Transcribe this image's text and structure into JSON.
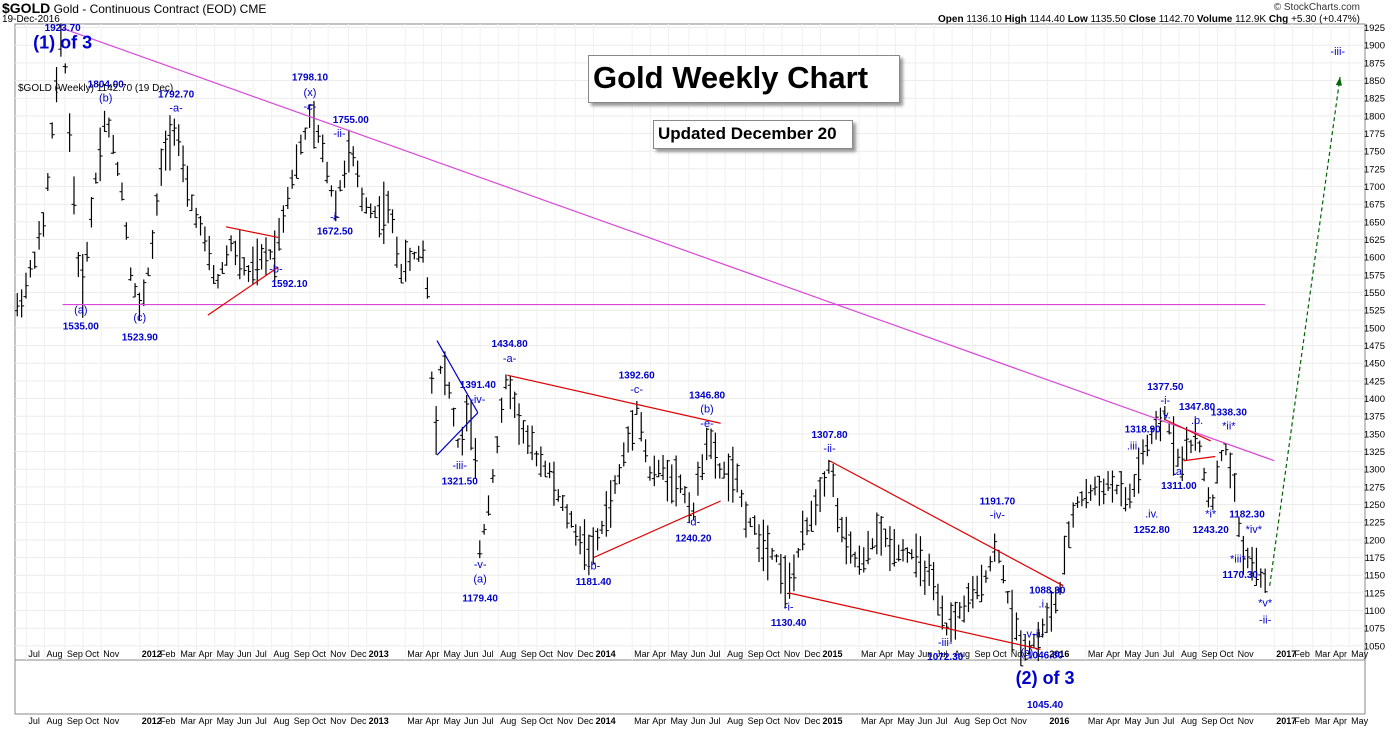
{
  "header": {
    "symbol": "$GOLD",
    "description": "Gold - Continuous Contract (EOD)",
    "exchange": "CME",
    "date": "19-Dec-2016",
    "copyright": "© StockCharts.com",
    "open_label": "Open",
    "open": "1136.10",
    "high_label": "High",
    "high": "1144.40",
    "low_label": "Low",
    "low": "1135.50",
    "close_label": "Close",
    "close": "1142.70",
    "volume_label": "Volume",
    "volume": "112.9K",
    "chg_label": "Chg",
    "chg": "+5.30 (+0.47%)",
    "legend": "$GOLD (Weekly) 1142.70 (19 Dec)"
  },
  "title_box": "Gold Weekly Chart",
  "updated_box": "Updated December 20",
  "colors": {
    "wave": "#0000cc",
    "channel": "#e00000",
    "trend": "#d946d9",
    "projection": "#006400"
  },
  "chart_data": {
    "type": "ohlc",
    "title": "Gold Weekly Chart",
    "ylim": [
      1030,
      1930
    ],
    "y_ticks": [
      1050,
      1075,
      1100,
      1125,
      1150,
      1175,
      1200,
      1225,
      1250,
      1275,
      1300,
      1325,
      1350,
      1375,
      1400,
      1425,
      1450,
      1475,
      1500,
      1525,
      1550,
      1575,
      1600,
      1625,
      1650,
      1675,
      1700,
      1725,
      1750,
      1775,
      1800,
      1825,
      1850,
      1875,
      1900,
      1925
    ],
    "x_labels": [
      {
        "t": "Jul",
        "x": 2011.5
      },
      {
        "t": "Aug",
        "x": 2011.58
      },
      {
        "t": "Sep",
        "x": 2011.67
      },
      {
        "t": "Oct",
        "x": 2011.75
      },
      {
        "t": "Nov",
        "x": 2011.83
      },
      {
        "t": "2012",
        "x": 2012.0
      },
      {
        "t": "Feb",
        "x": 2012.08
      },
      {
        "t": "Mar",
        "x": 2012.17
      },
      {
        "t": "Apr",
        "x": 2012.25
      },
      {
        "t": "May",
        "x": 2012.33
      },
      {
        "t": "Jun",
        "x": 2012.42
      },
      {
        "t": "Jul",
        "x": 2012.5
      },
      {
        "t": "Aug",
        "x": 2012.58
      },
      {
        "t": "Sep",
        "x": 2012.67
      },
      {
        "t": "Oct",
        "x": 2012.75
      },
      {
        "t": "Nov",
        "x": 2012.83
      },
      {
        "t": "Dec",
        "x": 2012.92
      },
      {
        "t": "2013",
        "x": 2013.0
      },
      {
        "t": "Mar",
        "x": 2013.17
      },
      {
        "t": "Apr",
        "x": 2013.25
      },
      {
        "t": "May",
        "x": 2013.33
      },
      {
        "t": "Jun",
        "x": 2013.42
      },
      {
        "t": "Jul",
        "x": 2013.5
      },
      {
        "t": "Aug",
        "x": 2013.58
      },
      {
        "t": "Sep",
        "x": 2013.67
      },
      {
        "t": "Oct",
        "x": 2013.75
      },
      {
        "t": "Nov",
        "x": 2013.83
      },
      {
        "t": "Dec",
        "x": 2013.92
      },
      {
        "t": "2014",
        "x": 2014.0
      },
      {
        "t": "Mar",
        "x": 2014.17
      },
      {
        "t": "Apr",
        "x": 2014.25
      },
      {
        "t": "May",
        "x": 2014.33
      },
      {
        "t": "Jun",
        "x": 2014.42
      },
      {
        "t": "Jul",
        "x": 2014.5
      },
      {
        "t": "Aug",
        "x": 2014.58
      },
      {
        "t": "Sep",
        "x": 2014.67
      },
      {
        "t": "Oct",
        "x": 2014.75
      },
      {
        "t": "Nov",
        "x": 2014.83
      },
      {
        "t": "Dec",
        "x": 2014.92
      },
      {
        "t": "2015",
        "x": 2015.0
      },
      {
        "t": "Mar",
        "x": 2015.17
      },
      {
        "t": "Apr",
        "x": 2015.25
      },
      {
        "t": "May",
        "x": 2015.33
      },
      {
        "t": "Jun",
        "x": 2015.42
      },
      {
        "t": "Jul",
        "x": 2015.5
      },
      {
        "t": "Aug",
        "x": 2015.58
      },
      {
        "t": "Sep",
        "x": 2015.67
      },
      {
        "t": "Oct",
        "x": 2015.75
      },
      {
        "t": "Nov",
        "x": 2015.83
      },
      {
        "t": "2016",
        "x": 2016.0
      },
      {
        "t": "Mar",
        "x": 2016.17
      },
      {
        "t": "Apr",
        "x": 2016.25
      },
      {
        "t": "May",
        "x": 2016.33
      },
      {
        "t": "Jun",
        "x": 2016.42
      },
      {
        "t": "Jul",
        "x": 2016.5
      },
      {
        "t": "Aug",
        "x": 2016.58
      },
      {
        "t": "Sep",
        "x": 2016.67
      },
      {
        "t": "Oct",
        "x": 2016.75
      },
      {
        "t": "Nov",
        "x": 2016.83
      },
      {
        "t": "2017",
        "x": 2017.0
      },
      {
        "t": "Feb",
        "x": 2017.08
      },
      {
        "t": "Mar",
        "x": 2017.17
      },
      {
        "t": "Apr",
        "x": 2017.25
      },
      {
        "t": "May",
        "x": 2017.33
      }
    ],
    "xlim": [
      2011.45,
      2017.4
    ],
    "price_path": [
      [
        2011.45,
        1520
      ],
      [
        2011.5,
        1560
      ],
      [
        2011.58,
        1650
      ],
      [
        2011.62,
        1800
      ],
      [
        2011.66,
        1923.7
      ],
      [
        2011.72,
        1640
      ],
      [
        2011.74,
        1535
      ],
      [
        2011.8,
        1700
      ],
      [
        2011.85,
        1804
      ],
      [
        2011.92,
        1700
      ],
      [
        2011.96,
        1580
      ],
      [
        2012.0,
        1523.9
      ],
      [
        2012.05,
        1600
      ],
      [
        2012.1,
        1740
      ],
      [
        2012.16,
        1792.7
      ],
      [
        2012.2,
        1700
      ],
      [
        2012.26,
        1650
      ],
      [
        2012.34,
        1560
      ],
      [
        2012.4,
        1620
      ],
      [
        2012.48,
        1575
      ],
      [
        2012.55,
        1600
      ],
      [
        2012.6,
        1610
      ],
      [
        2012.66,
        1700
      ],
      [
        2012.75,
        1798.1
      ],
      [
        2012.8,
        1760
      ],
      [
        2012.86,
        1672.5
      ],
      [
        2012.93,
        1755
      ],
      [
        2012.98,
        1680
      ],
      [
        2013.05,
        1660
      ],
      [
        2013.1,
        1670
      ],
      [
        2013.15,
        1580
      ],
      [
        2013.2,
        1600
      ],
      [
        2013.26,
        1610
      ],
      [
        2013.3,
        1340
      ],
      [
        2013.33,
        1460
      ],
      [
        2013.37,
        1400
      ],
      [
        2013.41,
        1321.5
      ],
      [
        2013.45,
        1391.4
      ],
      [
        2013.48,
        1300
      ],
      [
        2013.5,
        1179.4
      ],
      [
        2013.55,
        1280
      ],
      [
        2013.62,
        1434
      ],
      [
        2013.66,
        1380
      ],
      [
        2013.72,
        1330
      ],
      [
        2013.8,
        1300
      ],
      [
        2013.86,
        1250
      ],
      [
        2013.94,
        1200
      ],
      [
        2014.0,
        1181.4
      ],
      [
        2014.06,
        1240
      ],
      [
        2014.12,
        1300
      ],
      [
        2014.19,
        1392.6
      ],
      [
        2014.25,
        1290
      ],
      [
        2014.3,
        1300
      ],
      [
        2014.38,
        1280
      ],
      [
        2014.44,
        1240.2
      ],
      [
        2014.5,
        1346.8
      ],
      [
        2014.55,
        1300
      ],
      [
        2014.62,
        1290
      ],
      [
        2014.68,
        1230
      ],
      [
        2014.74,
        1200
      ],
      [
        2014.8,
        1180
      ],
      [
        2014.86,
        1130.4
      ],
      [
        2014.92,
        1200
      ],
      [
        2015.04,
        1307.8
      ],
      [
        2015.1,
        1200
      ],
      [
        2015.18,
        1160
      ],
      [
        2015.25,
        1210
      ],
      [
        2015.32,
        1190
      ],
      [
        2015.4,
        1180
      ],
      [
        2015.48,
        1150
      ],
      [
        2015.55,
        1072.3
      ],
      [
        2015.62,
        1100
      ],
      [
        2015.7,
        1130
      ],
      [
        2015.78,
        1191.7
      ],
      [
        2015.85,
        1080
      ],
      [
        2015.9,
        1046.8
      ],
      [
        2015.96,
        1060
      ],
      [
        2016.0,
        1088.3
      ],
      [
        2016.05,
        1120
      ],
      [
        2016.12,
        1250
      ],
      [
        2016.2,
        1270
      ],
      [
        2016.28,
        1280
      ],
      [
        2016.36,
        1252.8
      ],
      [
        2016.42,
        1318.9
      ],
      [
        2016.52,
        1377.5
      ],
      [
        2016.58,
        1311
      ],
      [
        2016.66,
        1347.8
      ],
      [
        2016.72,
        1243.2
      ],
      [
        2016.78,
        1338.3
      ],
      [
        2016.82,
        1280
      ],
      [
        2016.86,
        1182.3
      ],
      [
        2016.9,
        1170.3
      ],
      [
        2016.94,
        1142.7
      ]
    ],
    "lines": [
      {
        "kind": "trend",
        "from": [
          2011.66,
          1923.7
        ],
        "to": [
          2017.0,
          1312
        ]
      },
      {
        "kind": "trend",
        "from": [
          2011.66,
          1533
        ],
        "to": [
          2016.96,
          1533
        ]
      },
      {
        "kind": "channel",
        "from": [
          2012.38,
          1643
        ],
        "to": [
          2012.61,
          1628
        ]
      },
      {
        "kind": "channel",
        "from": [
          2012.3,
          1518
        ],
        "to": [
          2012.61,
          1586
        ]
      },
      {
        "kind": "wedge",
        "from": [
          2013.31,
          1482
        ],
        "to": [
          2013.49,
          1380
        ]
      },
      {
        "kind": "wedge",
        "from": [
          2013.31,
          1320
        ],
        "to": [
          2013.49,
          1380
        ]
      },
      {
        "kind": "channel",
        "from": [
          2013.62,
          1433
        ],
        "to": [
          2014.56,
          1365
        ]
      },
      {
        "kind": "channel",
        "from": [
          2014.0,
          1175
        ],
        "to": [
          2014.56,
          1255
        ]
      },
      {
        "kind": "channel",
        "from": [
          2014.86,
          1125
        ],
        "to": [
          2015.97,
          1045
        ]
      },
      {
        "kind": "channel",
        "from": [
          2015.04,
          1312
        ],
        "to": [
          2016.07,
          1135
        ]
      },
      {
        "kind": "channel",
        "from": [
          2016.52,
          1370
        ],
        "to": [
          2016.72,
          1340
        ]
      },
      {
        "kind": "channel",
        "from": [
          2016.6,
          1312
        ],
        "to": [
          2016.74,
          1318
        ]
      }
    ],
    "projection": {
      "from": [
        2016.98,
        1135
      ],
      "to": [
        2017.29,
        1855
      ]
    },
    "labels": [
      {
        "t": "1923.70",
        "x": 2011.66,
        "y": 1920,
        "cls": "price"
      },
      {
        "t": "(1) of 3",
        "x": 2011.66,
        "y": 1895,
        "cls": "big"
      },
      {
        "t": "(a)",
        "x": 2011.74,
        "y": 1520,
        "cls": "wave"
      },
      {
        "t": "1535.00",
        "x": 2011.74,
        "y": 1498,
        "cls": "price"
      },
      {
        "t": "1804.00",
        "x": 2011.85,
        "y": 1840,
        "cls": "price"
      },
      {
        "t": "(b)",
        "x": 2011.85,
        "y": 1820,
        "cls": "wave"
      },
      {
        "t": "(c)",
        "x": 2012.0,
        "y": 1510,
        "cls": "wave"
      },
      {
        "t": "1523.90",
        "x": 2012.0,
        "y": 1482,
        "cls": "price"
      },
      {
        "t": "1792.70",
        "x": 2012.16,
        "y": 1826,
        "cls": "price"
      },
      {
        "t": "-a-",
        "x": 2012.16,
        "y": 1806,
        "cls": "wave"
      },
      {
        "t": "-b-",
        "x": 2012.6,
        "y": 1578,
        "cls": "wave"
      },
      {
        "t": "1592.10",
        "x": 2012.66,
        "y": 1558,
        "cls": "price"
      },
      {
        "t": "1798.10",
        "x": 2012.75,
        "y": 1850,
        "cls": "price"
      },
      {
        "t": "(x)",
        "x": 2012.75,
        "y": 1828,
        "cls": "wave"
      },
      {
        "t": "-c-",
        "x": 2012.75,
        "y": 1808,
        "cls": "wave"
      },
      {
        "t": "1755.00",
        "x": 2012.93,
        "y": 1790,
        "cls": "price"
      },
      {
        "t": "-ii-",
        "x": 2012.88,
        "y": 1770,
        "cls": "wave"
      },
      {
        "t": "-i-",
        "x": 2012.86,
        "y": 1652,
        "cls": "wave"
      },
      {
        "t": "1672.50",
        "x": 2012.86,
        "y": 1632,
        "cls": "price"
      },
      {
        "t": "1391.40",
        "x": 2013.49,
        "y": 1415,
        "cls": "price"
      },
      {
        "t": "-iv-",
        "x": 2013.49,
        "y": 1394,
        "cls": "wave"
      },
      {
        "t": "-iii-",
        "x": 2013.41,
        "y": 1300,
        "cls": "wave"
      },
      {
        "t": "1321.50",
        "x": 2013.41,
        "y": 1278,
        "cls": "price"
      },
      {
        "t": "-v-",
        "x": 2013.5,
        "y": 1160,
        "cls": "wave"
      },
      {
        "t": "(a)",
        "x": 2013.5,
        "y": 1140,
        "cls": "wave"
      },
      {
        "t": "1179.40",
        "x": 2013.5,
        "y": 1113,
        "cls": "price"
      },
      {
        "t": "1434.80",
        "x": 2013.63,
        "y": 1473,
        "cls": "price"
      },
      {
        "t": "-a-",
        "x": 2013.63,
        "y": 1452,
        "cls": "wave"
      },
      {
        "t": "1392.60",
        "x": 2014.19,
        "y": 1428,
        "cls": "price"
      },
      {
        "t": "-c-",
        "x": 2014.19,
        "y": 1408,
        "cls": "wave"
      },
      {
        "t": "1346.80",
        "x": 2014.5,
        "y": 1400,
        "cls": "price"
      },
      {
        "t": "(b)",
        "x": 2014.5,
        "y": 1380,
        "cls": "wave"
      },
      {
        "t": "-e-",
        "x": 2014.5,
        "y": 1360,
        "cls": "wave"
      },
      {
        "t": "-b-",
        "x": 2014.0,
        "y": 1158,
        "cls": "wave"
      },
      {
        "t": "1181.40",
        "x": 2014.0,
        "y": 1136,
        "cls": "price"
      },
      {
        "t": "-d-",
        "x": 2014.44,
        "y": 1220,
        "cls": "wave"
      },
      {
        "t": "1240.20",
        "x": 2014.44,
        "y": 1198,
        "cls": "price"
      },
      {
        "t": "1307.80",
        "x": 2015.04,
        "y": 1344,
        "cls": "price"
      },
      {
        "t": "-ii-",
        "x": 2015.04,
        "y": 1324,
        "cls": "wave"
      },
      {
        "t": "-i-",
        "x": 2014.86,
        "y": 1100,
        "cls": "wave"
      },
      {
        "t": "1130.40",
        "x": 2014.86,
        "y": 1078,
        "cls": "price"
      },
      {
        "t": "1191.70",
        "x": 2015.78,
        "y": 1250,
        "cls": "price"
      },
      {
        "t": "-iv-",
        "x": 2015.78,
        "y": 1230,
        "cls": "wave"
      },
      {
        "t": "-iii-",
        "x": 2015.55,
        "y": 1050,
        "cls": "wave"
      },
      {
        "t": "1072.30",
        "x": 2015.55,
        "y": 1030,
        "cls": "price"
      },
      {
        "t": "1088.30",
        "x": 2016.0,
        "y": 1124,
        "cls": "price"
      },
      {
        "t": ".i.",
        "x": 2015.98,
        "y": 1104,
        "cls": "wave"
      },
      {
        "t": "-v-",
        "x": 2015.92,
        "y": 1062,
        "cls": "wave"
      },
      {
        "t": "-ii-",
        "x": 2015.96,
        "y": 1062,
        "cls": "wave"
      },
      {
        "t": "(c)",
        "x": 2015.91,
        "y": 1036,
        "cls": "wave"
      },
      {
        "t": "1046.80",
        "x": 2015.99,
        "y": 1032,
        "cls": "price"
      },
      {
        "t": "1377.50",
        "x": 2016.52,
        "y": 1412,
        "cls": "price"
      },
      {
        "t": "-i-",
        "x": 2016.52,
        "y": 1392,
        "cls": "wave"
      },
      {
        "t": ".v.",
        "x": 2016.52,
        "y": 1372,
        "cls": "wave"
      },
      {
        "t": "1318.90",
        "x": 2016.42,
        "y": 1352,
        "cls": "price"
      },
      {
        "t": ".iii.",
        "x": 2016.38,
        "y": 1328,
        "cls": "wave"
      },
      {
        "t": ".a.",
        "x": 2016.58,
        "y": 1292,
        "cls": "wave"
      },
      {
        "t": "1311.00",
        "x": 2016.58,
        "y": 1272,
        "cls": "price"
      },
      {
        "t": ".iv.",
        "x": 2016.46,
        "y": 1232,
        "cls": "wave"
      },
      {
        "t": "1252.80",
        "x": 2016.46,
        "y": 1210,
        "cls": "price"
      },
      {
        "t": "1347.80",
        "x": 2016.66,
        "y": 1384,
        "cls": "price"
      },
      {
        "t": ".b.",
        "x": 2016.66,
        "y": 1364,
        "cls": "wave"
      },
      {
        "t": "1338.30",
        "x": 2016.8,
        "y": 1376,
        "cls": "price"
      },
      {
        "t": "*ii*",
        "x": 2016.8,
        "y": 1356,
        "cls": "wave"
      },
      {
        "t": "*i*",
        "x": 2016.72,
        "y": 1232,
        "cls": "wave"
      },
      {
        "t": "1243.20",
        "x": 2016.72,
        "y": 1210,
        "cls": "price"
      },
      {
        "t": "1182.30",
        "x": 2016.88,
        "y": 1232,
        "cls": "price"
      },
      {
        "t": "*iv*",
        "x": 2016.91,
        "y": 1210,
        "cls": "wave"
      },
      {
        "t": "*iii*",
        "x": 2016.84,
        "y": 1168,
        "cls": "wave"
      },
      {
        "t": "1170.30",
        "x": 2016.85,
        "y": 1146,
        "cls": "price"
      },
      {
        "t": "*v*",
        "x": 2016.96,
        "y": 1106,
        "cls": "wave"
      },
      {
        "t": "-ii-",
        "x": 2016.96,
        "y": 1082,
        "cls": "wave"
      },
      {
        "t": "-iii-",
        "x": 2017.28,
        "y": 1886,
        "cls": "wave"
      },
      {
        "t": "(2) of 3",
        "x": 2015.99,
        "y": 996,
        "cls": "big"
      },
      {
        "t": "1045.40",
        "x": 2015.99,
        "y": 962,
        "cls": "price"
      }
    ]
  }
}
